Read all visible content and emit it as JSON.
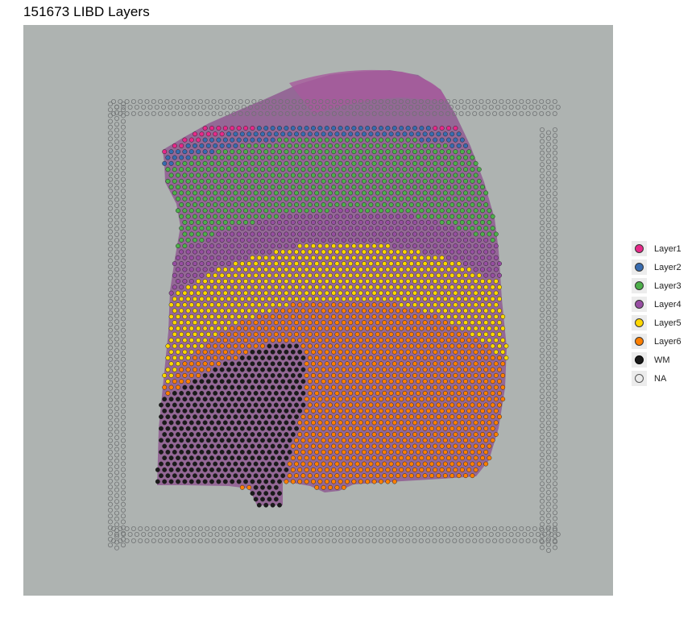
{
  "title": "151673 LIBD Layers",
  "legend": {
    "items": [
      {
        "label": "Layer1",
        "color": "#e7298a"
      },
      {
        "label": "Layer2",
        "color": "#386cb0"
      },
      {
        "label": "Layer3",
        "color": "#4daf4a"
      },
      {
        "label": "Layer4",
        "color": "#984ea3"
      },
      {
        "label": "Layer5",
        "color": "#ffd700"
      },
      {
        "label": "Layer6",
        "color": "#ff7f00"
      },
      {
        "label": "WM",
        "color": "#1a1a1a"
      },
      {
        "label": "NA",
        "color": "transparent"
      }
    ]
  }
}
